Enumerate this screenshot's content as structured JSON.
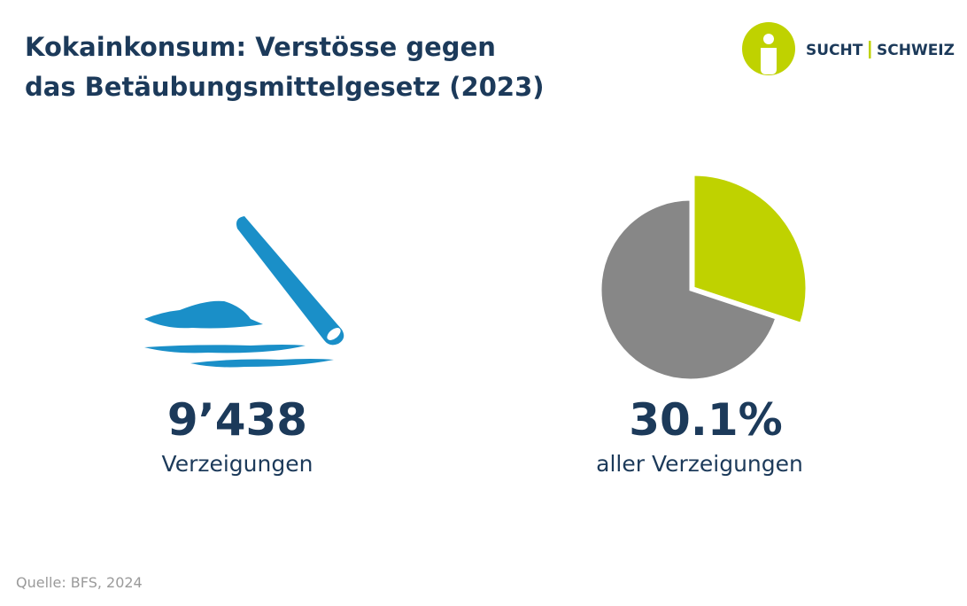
{
  "header": {
    "title_line1": "Kokainkonsum: Verstösse gegen",
    "title_line2": "das Betäubungsmittelgesetz (2023)"
  },
  "logo": {
    "left": "SUCHT",
    "right": "SCHWEIZ"
  },
  "stat": {
    "value": "9’438",
    "caption": "Verzeigungen"
  },
  "chart_data": {
    "type": "pie",
    "values": [
      30.1,
      69.9
    ],
    "value_labels": [
      "30.1%",
      null
    ],
    "colors": [
      "#bfd200",
      "#878787"
    ],
    "caption": "aller Verzeigungen"
  },
  "source": "Quelle: BFS, 2024"
}
